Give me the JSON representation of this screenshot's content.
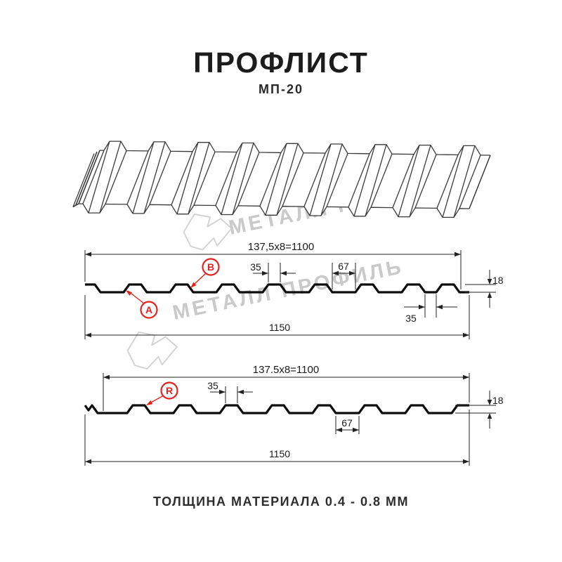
{
  "header": {
    "title": "ПРОФЛИСТ",
    "subtitle": "МП-20"
  },
  "footer": {
    "note": "ТОЛЩИНА МАТЕРИАЛА 0.4 - 0.8 ММ"
  },
  "watermark": {
    "text": "МЕТАЛЛ ПРОФИЛЬ"
  },
  "colors": {
    "accent_red": "#e42320",
    "line": "#1a1a1a",
    "watermark_gray": "#c9c9c9"
  },
  "profiles": {
    "top": {
      "label_a": "A",
      "label_b": "B",
      "width_formula": "137,5x8=1100",
      "dim_crest_top": "35",
      "dim_valley": "67",
      "dim_height": "18",
      "dim_overlap_slot": "35",
      "dim_total_width": "1150"
    },
    "bottom": {
      "label_r": "R",
      "width_formula": "137.5x8=1100",
      "dim_crest_top": "35",
      "dim_valley": "67",
      "dim_height": "18",
      "dim_total_width": "1150"
    }
  }
}
